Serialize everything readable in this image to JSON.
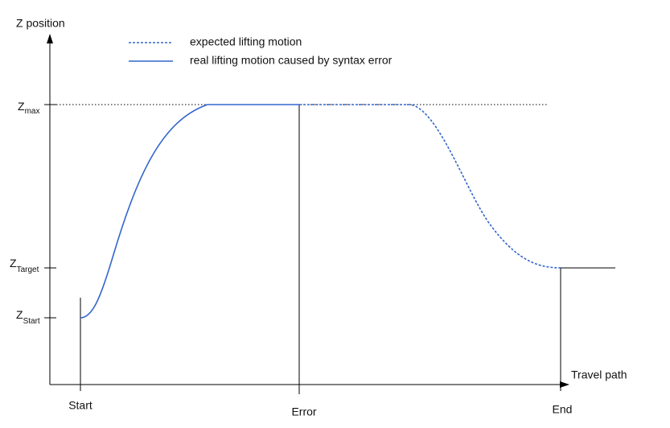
{
  "y_axis_label": "Z position",
  "x_axis_label": "Travel path",
  "legend": [
    {
      "label": "expected lifting motion"
    },
    {
      "label": "real lifting motion caused by syntax error"
    }
  ],
  "levels": [
    {
      "main": "Z",
      "sub": "max"
    },
    {
      "main": "Z",
      "sub": "Target"
    },
    {
      "main": "Z",
      "sub": "Start"
    }
  ],
  "positions": [
    "Start",
    "Error",
    "End"
  ]
}
